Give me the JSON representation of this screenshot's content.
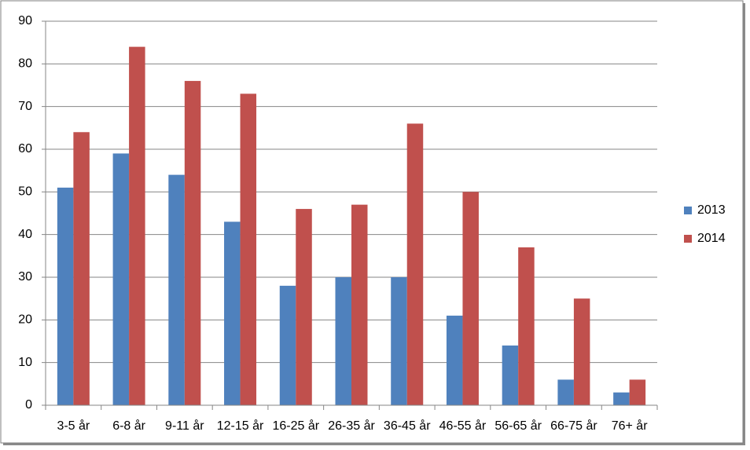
{
  "chart_data": {
    "type": "bar",
    "categories": [
      "3-5 år",
      "6-8 år",
      "9-11 år",
      "12-15 år",
      "16-25 år",
      "26-35 år",
      "36-45 år",
      "46-55 år",
      "56-65 år",
      "66-75 år",
      "76+ år"
    ],
    "series": [
      {
        "name": "2013",
        "color": "#4f81bd",
        "values": [
          51,
          59,
          54,
          43,
          28,
          30,
          30,
          21,
          14,
          6,
          3
        ]
      },
      {
        "name": "2014",
        "color": "#c0504d",
        "values": [
          64,
          84,
          76,
          73,
          46,
          47,
          66,
          50,
          37,
          25,
          6
        ]
      }
    ],
    "ylim": [
      0,
      90
    ],
    "yticks": [
      0,
      10,
      20,
      30,
      40,
      50,
      60,
      70,
      80,
      90
    ],
    "grid": true,
    "legend": "right"
  }
}
